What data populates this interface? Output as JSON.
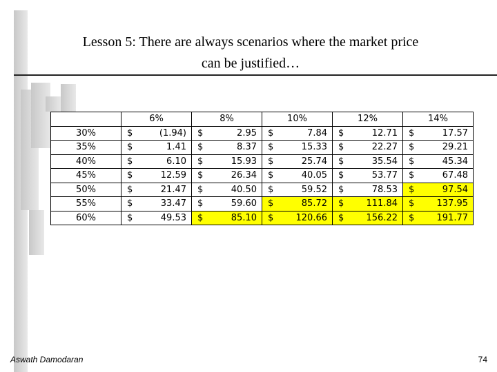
{
  "header": {
    "title_line1": "Lesson 5: There are always scenarios where the market price",
    "title_line2": "can be justified…"
  },
  "table": {
    "currency": "$",
    "highlight_color": "#ffff00",
    "columns": [
      "6%",
      "8%",
      "10%",
      "12%",
      "14%"
    ],
    "rows": [
      {
        "label": "30%",
        "cells": [
          {
            "amount": "(1.94)",
            "highlight": false
          },
          {
            "amount": "2.95",
            "highlight": false
          },
          {
            "amount": "7.84",
            "highlight": false
          },
          {
            "amount": "12.71",
            "highlight": false
          },
          {
            "amount": "17.57",
            "highlight": false
          }
        ]
      },
      {
        "label": "35%",
        "cells": [
          {
            "amount": "1.41",
            "highlight": false
          },
          {
            "amount": "8.37",
            "highlight": false
          },
          {
            "amount": "15.33",
            "highlight": false
          },
          {
            "amount": "22.27",
            "highlight": false
          },
          {
            "amount": "29.21",
            "highlight": false
          }
        ]
      },
      {
        "label": "40%",
        "cells": [
          {
            "amount": "6.10",
            "highlight": false
          },
          {
            "amount": "15.93",
            "highlight": false
          },
          {
            "amount": "25.74",
            "highlight": false
          },
          {
            "amount": "35.54",
            "highlight": false
          },
          {
            "amount": "45.34",
            "highlight": false
          }
        ]
      },
      {
        "label": "45%",
        "cells": [
          {
            "amount": "12.59",
            "highlight": false
          },
          {
            "amount": "26.34",
            "highlight": false
          },
          {
            "amount": "40.05",
            "highlight": false
          },
          {
            "amount": "53.77",
            "highlight": false
          },
          {
            "amount": "67.48",
            "highlight": false
          }
        ]
      },
      {
        "label": "50%",
        "cells": [
          {
            "amount": "21.47",
            "highlight": false
          },
          {
            "amount": "40.50",
            "highlight": false
          },
          {
            "amount": "59.52",
            "highlight": false
          },
          {
            "amount": "78.53",
            "highlight": false
          },
          {
            "amount": "97.54",
            "highlight": true
          }
        ]
      },
      {
        "label": "55%",
        "cells": [
          {
            "amount": "33.47",
            "highlight": false
          },
          {
            "amount": "59.60",
            "highlight": false
          },
          {
            "amount": "85.72",
            "highlight": true
          },
          {
            "amount": "111.84",
            "highlight": true
          },
          {
            "amount": "137.95",
            "highlight": true
          }
        ]
      },
      {
        "label": "60%",
        "cells": [
          {
            "amount": "49.53",
            "highlight": false
          },
          {
            "amount": "85.10",
            "highlight": true
          },
          {
            "amount": "120.66",
            "highlight": true
          },
          {
            "amount": "156.22",
            "highlight": true
          },
          {
            "amount": "191.77",
            "highlight": true
          }
        ]
      }
    ]
  },
  "footer": {
    "author": "Aswath Damodaran",
    "page": "74"
  }
}
